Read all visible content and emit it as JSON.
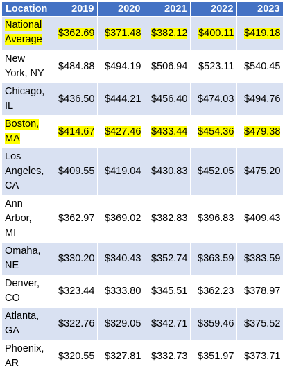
{
  "table": {
    "headers": [
      "Location",
      "2019",
      "2020",
      "2021",
      "2022",
      "2023"
    ],
    "rows": [
      {
        "location": [
          "National",
          "Average"
        ],
        "values": [
          "$362.69",
          "$371.48",
          "$382.12",
          "$400.11",
          "$419.18"
        ],
        "highlight": true
      },
      {
        "location": [
          "New",
          "York, NY"
        ],
        "values": [
          "$484.88",
          "$494.19",
          "$506.94",
          "$523.11",
          "$540.45"
        ],
        "highlight": false
      },
      {
        "location": [
          "Chicago,",
          "IL"
        ],
        "values": [
          "$436.50",
          "$444.21",
          "$456.40",
          "$474.03",
          "$494.76"
        ],
        "highlight": false
      },
      {
        "location": [
          "Boston,",
          "MA"
        ],
        "values": [
          "$414.67",
          "$427.46",
          "$433.44",
          "$454.36",
          "$479.38"
        ],
        "highlight": true
      },
      {
        "location": [
          "Los",
          "Angeles,",
          "CA"
        ],
        "values": [
          "$409.55",
          "$419.04",
          "$430.83",
          "$452.05",
          "$475.20"
        ],
        "highlight": false
      },
      {
        "location": [
          "Ann",
          "Arbor,",
          "MI"
        ],
        "values": [
          "$362.97",
          "$369.02",
          "$382.83",
          "$396.83",
          "$409.43"
        ],
        "highlight": false
      },
      {
        "location": [
          "Omaha,",
          "NE"
        ],
        "values": [
          "$330.20",
          "$340.43",
          "$352.74",
          "$363.59",
          "$383.59"
        ],
        "highlight": false
      },
      {
        "location": [
          "Denver,",
          "CO"
        ],
        "values": [
          "$323.44",
          "$333.80",
          "$345.51",
          "$362.23",
          "$378.97"
        ],
        "highlight": false
      },
      {
        "location": [
          "Atlanta,",
          "GA"
        ],
        "values": [
          "$322.76",
          "$329.05",
          "$342.71",
          "$359.46",
          "$375.52"
        ],
        "highlight": false
      },
      {
        "location": [
          "Phoenix,",
          "AR"
        ],
        "values": [
          "$320.55",
          "$327.81",
          "$332.73",
          "$351.97",
          "$373.71"
        ],
        "highlight": false
      }
    ]
  },
  "colors": {
    "header_bg": "#4472c4",
    "band_bg": "#d9e1f2",
    "highlight": "#ffff00"
  }
}
